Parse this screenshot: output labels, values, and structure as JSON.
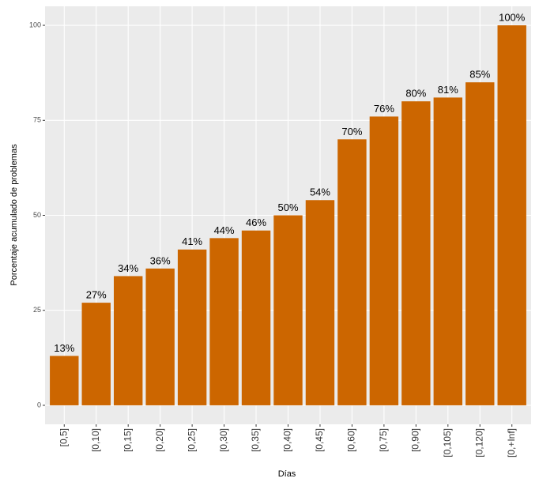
{
  "chart_data": {
    "type": "bar",
    "x_label": "Días",
    "y_label": "Porcentaje acumulado de problemas",
    "categories": [
      "[0,5]",
      "[0,10]",
      "[0,15]",
      "[0,20]",
      "[0,25]",
      "[0,30]",
      "[0,35]",
      "[0,40]",
      "[0,45]",
      "[0,60]",
      "[0,75]",
      "[0,90]",
      "[0,105]",
      "[0,120]",
      "[0,+Inf]"
    ],
    "values": [
      13,
      27,
      34,
      36,
      41,
      44,
      46,
      50,
      54,
      70,
      76,
      80,
      81,
      85,
      100
    ],
    "value_labels": [
      "13%",
      "27%",
      "34%",
      "36%",
      "41%",
      "44%",
      "46%",
      "50%",
      "54%",
      "70%",
      "76%",
      "80%",
      "81%",
      "85%",
      "100%"
    ],
    "color": "#CC6600",
    "ylim": [
      -5,
      105
    ],
    "yticks": [
      0,
      25,
      50,
      75,
      100
    ],
    "grid": true
  }
}
